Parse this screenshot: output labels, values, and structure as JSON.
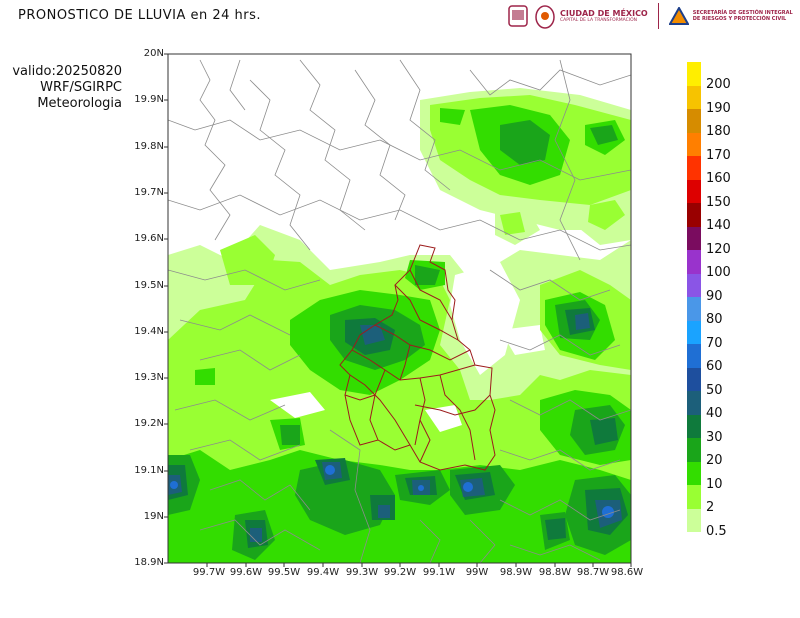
{
  "header": {
    "title": "PRONOSTICO DE LLUVIA en 24 hrs.",
    "valid_line": "valido:20250820",
    "model_line": "WRF/SGIRPC",
    "source_line": "Meteorologia"
  },
  "logos": {
    "cdmx_name": "CIUDAD DE MÉXICO",
    "cdmx_tagline": "CAPITAL DE LA TRANSFORMACIÓN",
    "sgirpc_line1": "SECRETARÍA DE GESTIÓN INTEGRAL",
    "sgirpc_line2": "DE RIESGOS Y PROTECCIÓN CIVIL"
  },
  "map": {
    "lat_labels": [
      "20N",
      "19.9N",
      "19.8N",
      "19.7N",
      "19.6N",
      "19.5N",
      "19.4N",
      "19.3N",
      "19.2N",
      "19.1N",
      "19N",
      "18.9N"
    ],
    "lon_labels": [
      "99.7W",
      "99.6W",
      "99.5W",
      "99.4W",
      "99.3W",
      "99.2W",
      "99.1W",
      "99W",
      "98.9W",
      "98.8W",
      "98.7W",
      "98.6W"
    ],
    "lat_range": [
      18.9,
      20.0
    ],
    "lon_range": [
      -99.78,
      -98.6
    ]
  },
  "colorbar": {
    "labels": [
      "200",
      "190",
      "180",
      "170",
      "160",
      "150",
      "140",
      "120",
      "100",
      "90",
      "80",
      "70",
      "60",
      "50",
      "40",
      "30",
      "20",
      "10",
      "2",
      "0.5"
    ],
    "colors": [
      "#ffee00",
      "#f7c300",
      "#d68c00",
      "#ff7f00",
      "#ff3300",
      "#dd0000",
      "#990000",
      "#7a0c5f",
      "#9933cc",
      "#8a55e6",
      "#4a97e8",
      "#1aa3ff",
      "#1f6fd4",
      "#1e4f9e",
      "#1c5f7a",
      "#0f7a3c",
      "#1aa51a",
      "#33dd00",
      "#99ff33",
      "#ccff99"
    ]
  }
}
